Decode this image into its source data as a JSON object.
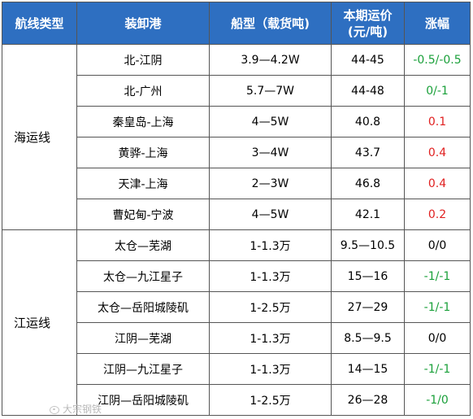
{
  "header": {
    "route_type": "航线类型",
    "port": "装卸港",
    "ship_type": "船型（载货吨)",
    "freight": "本期运价\n(元/吨)",
    "change": "涨幅"
  },
  "groups": [
    {
      "name": "海运线",
      "rows": [
        {
          "port": "北-江阴",
          "ship": "3.9—4.2W",
          "freight": "44-45",
          "change": "-0.5/-0.5",
          "trend": "down"
        },
        {
          "port": "北-广州",
          "ship": "5.7—7W",
          "freight": "44-48",
          "change": "0/-1",
          "trend": "down"
        },
        {
          "port": "秦皇岛-上海",
          "ship": "4—5W",
          "freight": "40.8",
          "change": "0.1",
          "trend": "up"
        },
        {
          "port": "黄骅-上海",
          "ship": "3—4W",
          "freight": "43.7",
          "change": "0.4",
          "trend": "up"
        },
        {
          "port": "天津-上海",
          "ship": "2—3W",
          "freight": "46.8",
          "change": "0.4",
          "trend": "up"
        },
        {
          "port": "曹妃甸-宁波",
          "ship": "4—5W",
          "freight": "42.1",
          "change": "0.2",
          "trend": "up"
        }
      ]
    },
    {
      "name": "江运线",
      "rows": [
        {
          "port": "太仓—芜湖",
          "ship": "1-1.3万",
          "freight": "9.5—10.5",
          "change": "0/0",
          "trend": "flat"
        },
        {
          "port": "太仓—九江星子",
          "ship": "1-1.3万",
          "freight": "15—16",
          "change": "-1/-1",
          "trend": "down"
        },
        {
          "port": "太仓—岳阳城陵矶",
          "ship": "1-2.5万",
          "freight": "27—29",
          "change": "-1/-1",
          "trend": "down"
        },
        {
          "port": "江阴—芜湖",
          "ship": "1-1.3万",
          "freight": "8.5—9.5",
          "change": "0/0",
          "trend": "flat"
        },
        {
          "port": "江阴—九江星子",
          "ship": "1-1.3万",
          "freight": "14—15",
          "change": "-1/-1",
          "trend": "down"
        },
        {
          "port": "江阴—岳阳城陵矶",
          "ship": "1-2.5万",
          "freight": "26—28",
          "change": "-1/0",
          "trend": "down"
        }
      ]
    }
  ],
  "colors": {
    "header_bg": "#2e6fc1",
    "up": "#e02020",
    "down": "#1aa03a",
    "flat": "#000000"
  },
  "watermark": {
    "icon": "weibo-icon",
    "text": "大宗钢铁"
  }
}
